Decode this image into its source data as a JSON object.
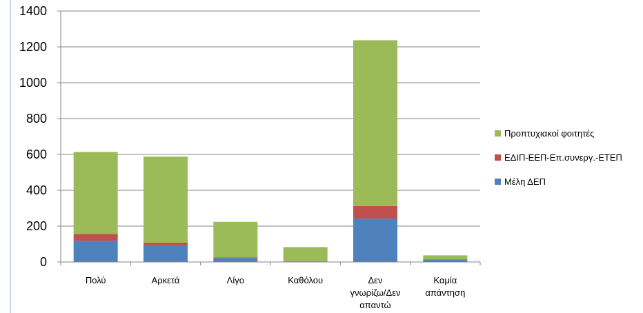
{
  "chart_data": {
    "type": "bar",
    "stacked": true,
    "categories": [
      [
        "Πολύ"
      ],
      [
        "Αρκετά"
      ],
      [
        "Λίγο"
      ],
      [
        "Καθόλου"
      ],
      [
        "Δεν",
        "γνωρίζω/Δεν",
        "απαντώ"
      ],
      [
        "Καμία",
        "απάντηση"
      ]
    ],
    "series": [
      {
        "name": "Μέλη ΔΕΠ",
        "color": "#4f81bd",
        "values": [
          118,
          90,
          22,
          3,
          242,
          12
        ]
      },
      {
        "name": "ΕΔΙΠ-ΕΕΠ-Επ.συνεργ.-ΕΤΕΠ",
        "color": "#c0504d",
        "values": [
          38,
          18,
          4,
          2,
          70,
          3
        ]
      },
      {
        "name": "Προπτυχιακοί φοιτητές",
        "color": "#9bbb59",
        "values": [
          458,
          480,
          198,
          78,
          925,
          22
        ]
      }
    ],
    "ylim": [
      0,
      1400
    ],
    "yticks": [
      0,
      200,
      400,
      600,
      800,
      1000,
      1200,
      1400
    ],
    "grid": true,
    "legend": "right",
    "legend_order": [
      "Προπτυχιακοί φοιτητές",
      "ΕΔΙΠ-ΕΕΠ-Επ.συνεργ.-ΕΤΕΠ",
      "Μέλη ΔΕΠ"
    ]
  }
}
